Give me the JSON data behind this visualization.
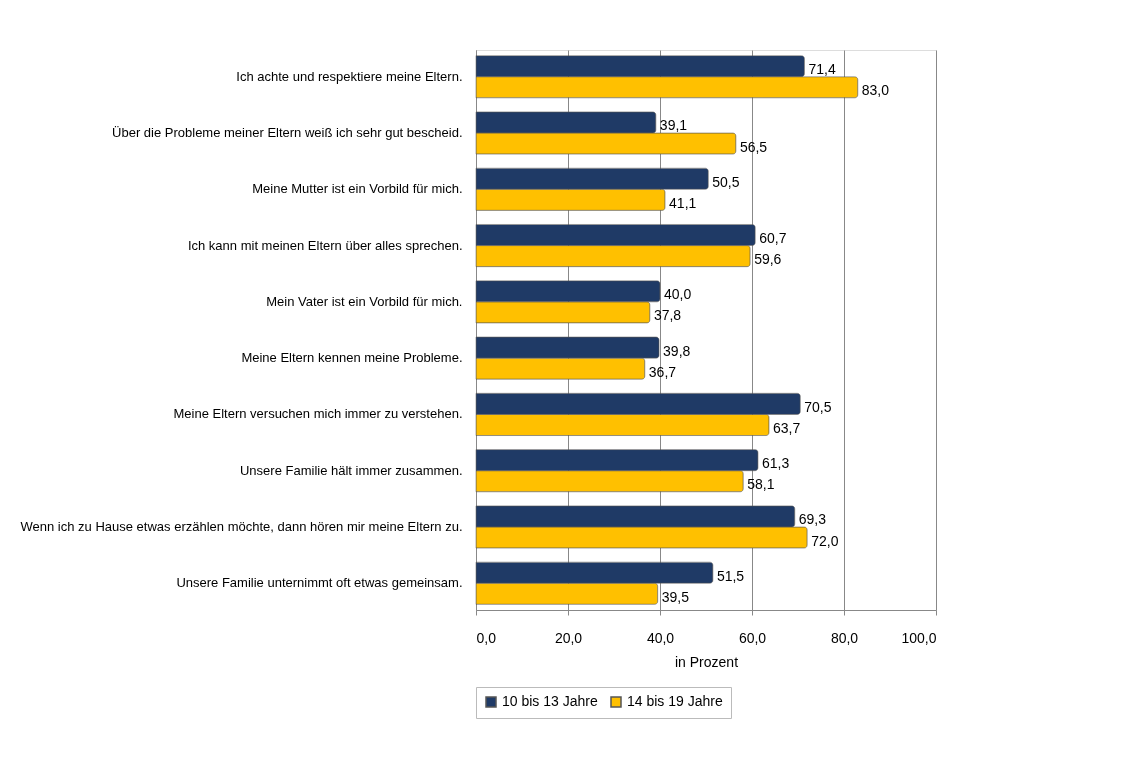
{
  "chart_data": {
    "type": "bar",
    "orientation": "horizontal",
    "categories": [
      "Ich achte und respektiere meine Eltern.",
      "Über die Probleme meiner Eltern weiß ich sehr gut bescheid.",
      "Meine Mutter ist ein Vorbild für mich.",
      "Ich kann mit meinen Eltern über alles sprechen.",
      "Mein Vater ist ein Vorbild für mich.",
      "Meine Eltern kennen meine Probleme.",
      "Meine Eltern versuchen mich immer zu verstehen.",
      "Unsere Familie hält immer zusammen.",
      "Wenn ich zu Hause etwas erzählen möchte, dann hören mir meine Eltern zu.",
      "Unsere Familie unternimmt oft etwas gemeinsam."
    ],
    "series": [
      {
        "name": "10 bis 13 Jahre",
        "color": "#1f3a66",
        "values": [
          71.4,
          39.1,
          50.5,
          60.7,
          40.0,
          39.8,
          70.5,
          61.3,
          69.3,
          51.5
        ],
        "value_labels": [
          "71,4",
          "39,1",
          "50,5",
          "60,7",
          "40,0",
          "39,8",
          "70,5",
          "61,3",
          "69,3",
          "51,5"
        ]
      },
      {
        "name": "14 bis 19 Jahre",
        "color": "#ffc000",
        "values": [
          83.0,
          56.5,
          41.1,
          59.6,
          37.8,
          36.7,
          63.7,
          58.1,
          72.0,
          39.5
        ],
        "value_labels": [
          "83,0",
          "56,5",
          "41,1",
          "59,6",
          "37,8",
          "36,7",
          "63,7",
          "58,1",
          "72,0",
          "39,5"
        ]
      }
    ],
    "xlabel": "in Prozent",
    "xlim": [
      0,
      100
    ],
    "xticks": [
      {
        "value": 0,
        "label": "0,0"
      },
      {
        "value": 20,
        "label": "20,0"
      },
      {
        "value": 40,
        "label": "40,0"
      },
      {
        "value": 60,
        "label": "60,0"
      },
      {
        "value": 80,
        "label": "80,0"
      },
      {
        "value": 100,
        "label": "100,0"
      }
    ],
    "grid": "x",
    "legend": "bottom"
  }
}
